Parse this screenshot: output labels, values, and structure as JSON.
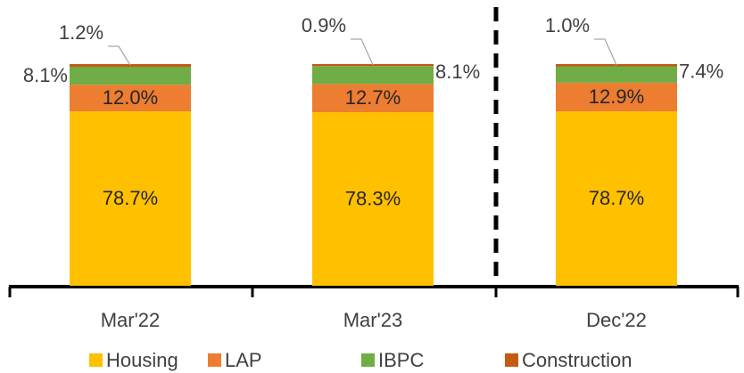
{
  "chart_data": {
    "type": "stacked_bar",
    "categories": [
      "Mar'22",
      "Mar'23",
      "Dec'22"
    ],
    "series": [
      {
        "name": "Housing",
        "color": "#FFC000",
        "values": [
          78.7,
          78.3,
          78.7
        ],
        "value_labels": [
          "78.7%",
          "78.3%",
          "78.7%"
        ]
      },
      {
        "name": "LAP",
        "color": "#ED7D31",
        "values": [
          12.0,
          12.7,
          12.9
        ],
        "value_labels": [
          "12.0%",
          "12.7%",
          "12.9%"
        ]
      },
      {
        "name": "IBPC",
        "color": "#70AD47",
        "values": [
          8.1,
          8.1,
          7.4
        ],
        "value_labels": [
          "8.1%",
          "8.1%",
          "7.4%"
        ]
      },
      {
        "name": "Construction",
        "color": "#C55A11",
        "values": [
          1.2,
          0.9,
          1.0
        ],
        "value_labels": [
          "1.2%",
          "0.9%",
          "1.0%"
        ]
      }
    ],
    "legend": "bottom"
  }
}
